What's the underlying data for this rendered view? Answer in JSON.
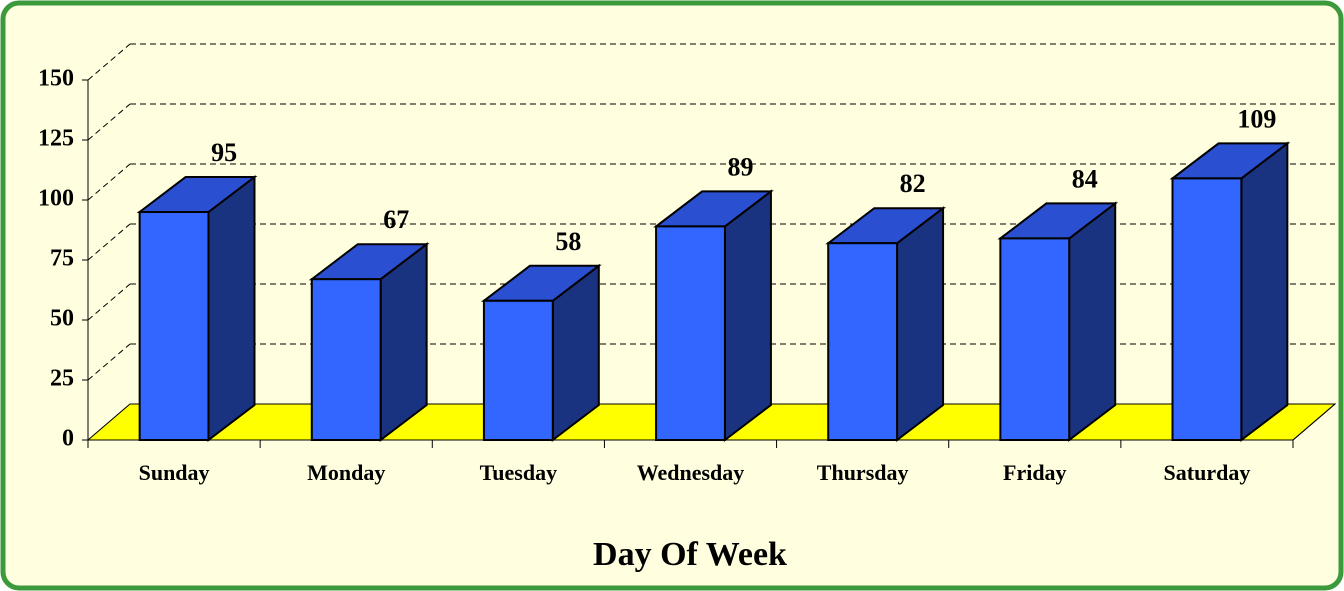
{
  "chart_data": {
    "type": "bar3d",
    "x_label": "Day Of Week",
    "categories": [
      "Sunday",
      "Monday",
      "Tuesday",
      "Wednesday",
      "Thursday",
      "Friday",
      "Saturday"
    ],
    "values": [
      95,
      67,
      58,
      89,
      82,
      84,
      109
    ],
    "color": "#3366ff",
    "floor_color": "#ffff00",
    "background": "#ffffe0",
    "border_color": "#3c9a3c",
    "ylim": [
      0,
      150
    ],
    "yticks": [
      0,
      25,
      50,
      75,
      100,
      125,
      150
    ],
    "grid": true
  }
}
